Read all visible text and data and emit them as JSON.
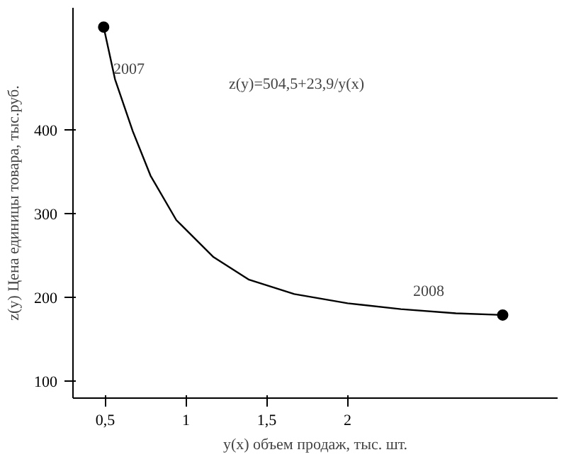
{
  "chart_data": {
    "type": "line",
    "xlabel": "y(x) объем продаж, тыс. шт.",
    "ylabel": "z(y) Цена единицы товара, тыс.руб.",
    "series": [
      {
        "color": "#000000",
        "x": [
          0.49,
          0.56,
          0.67,
          0.78,
          0.94,
          1.17,
          1.39,
          1.67,
          2.0,
          2.33,
          2.67,
          2.96
        ],
        "values": [
          522,
          460,
          398,
          345,
          292,
          248,
          221,
          204,
          193,
          186,
          181,
          179
        ]
      },
      {
        "type": "scatter",
        "color": "#000000",
        "marker": "circle",
        "x": [
          0.49,
          2.96
        ],
        "values": [
          522,
          179
        ]
      }
    ],
    "xlim": [
      0.3,
      3.3
    ],
    "ylim": [
      80,
      545
    ],
    "xticks": [
      {
        "value": 0.5,
        "label": "0,5"
      },
      1,
      {
        "value": 1.5,
        "label": "1,5"
      },
      2
    ],
    "yticks": [
      100,
      200,
      300,
      400
    ],
    "annotations": [
      {
        "text": "2007",
        "x": 0.55,
        "y": 466
      },
      "2008",
      "z(y)=504,5+23,9/y(x)"
    ],
    "grid": false,
    "marker": "none",
    "line_style": "solid"
  }
}
